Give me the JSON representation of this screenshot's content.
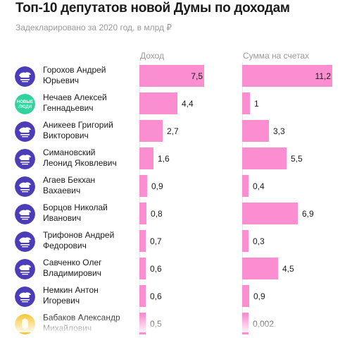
{
  "title": "Топ-10 депутатов новой Думы по доходам",
  "subtitle": "Задекларировано за 2020 год, в млрд ₽",
  "colors": {
    "bar": "#fb8ed0",
    "united_russia": "#4b3cb8",
    "new_people": "#2fd39c",
    "ldpr": "#f4c93a"
  },
  "chart_data": {
    "type": "bar",
    "orientation": "horizontal",
    "categories": [
      [
        "Горохов Андрей",
        "Юрьевич"
      ],
      [
        "Нечаев Алексей",
        "Геннадьевич"
      ],
      [
        "Аникеев Григорий",
        "Викторович"
      ],
      [
        "Симановский",
        "Леонид Яковлевич"
      ],
      [
        "Агаев Бекхан",
        "Вахаевич"
      ],
      [
        "Борцов Николай",
        "Иванович"
      ],
      [
        "Трифонов Андрей",
        "Федорович"
      ],
      [
        "Савченко Олег",
        "Владимирович"
      ],
      [
        "Немкин Антон",
        "Игоревич"
      ],
      [
        "Бабаков Александр",
        "Михайлович"
      ]
    ],
    "party_logos": [
      "united-russia",
      "new-people",
      "united-russia",
      "united-russia",
      "united-russia",
      "united-russia",
      "united-russia",
      "united-russia",
      "united-russia",
      "ldpr"
    ],
    "new_people_logo_text": [
      "НОВЫЕ",
      "ЛЮДИ"
    ],
    "series": [
      {
        "name": "Доход",
        "values": [
          7.5,
          4.4,
          2.7,
          1.6,
          0.9,
          0.8,
          0.7,
          0.6,
          0.6,
          0.5
        ],
        "labels": [
          "7,5",
          "4,4",
          "2,7",
          "1,6",
          "0,9",
          "0,8",
          "0,7",
          "0,6",
          "0,6",
          "0,5"
        ]
      },
      {
        "name": "Сумма на счетах",
        "values": [
          11.2,
          1,
          3.3,
          5.5,
          0.4,
          6.9,
          0.3,
          4.5,
          0.9,
          0.002
        ],
        "labels": [
          "11,2",
          "1",
          "3,3",
          "5,5",
          "0,4",
          "6,9",
          "0,3",
          "4,5",
          "0,9",
          "0,002"
        ]
      }
    ],
    "xlim": [
      [
        0,
        7.5
      ],
      [
        0,
        11.2
      ]
    ],
    "grid": false,
    "legend": "column headers"
  }
}
